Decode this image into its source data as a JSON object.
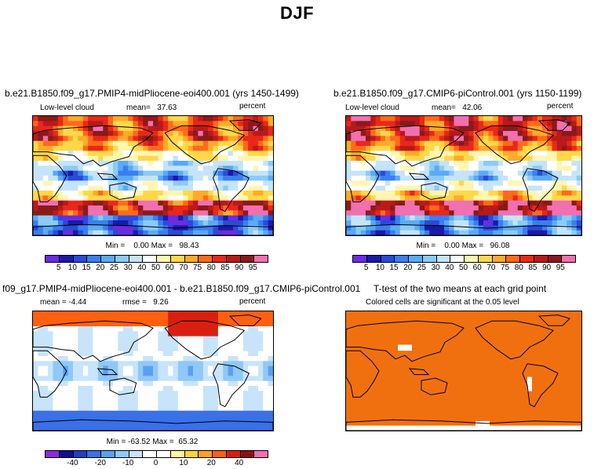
{
  "title": "DJF",
  "colors": {
    "ocean_default": "#ffffff",
    "continent_line": "#000000",
    "significant": "#f07010",
    "not_significant": "#ffffff"
  },
  "chart_data": [
    {
      "type": "heatmap",
      "panel": "top-left",
      "title": "b.e21.B1850.f09_g17.PMIP4-midPliocene-eoi400.001 (yrs 1450-1499)",
      "variable_label": "Low-level cloud",
      "mean_label": "mean=",
      "mean_value": "37.63",
      "units": "percent",
      "min_label": "Min =",
      "min_value": "0.00",
      "max_label": "Max =",
      "max_value": "98.43",
      "colorbar_levels": [
        5,
        10,
        15,
        20,
        25,
        30,
        40,
        50,
        60,
        70,
        75,
        80,
        85,
        90,
        95
      ],
      "colorbar_tick_labels": [
        "5",
        "10",
        "15",
        "20",
        "25",
        "30",
        "40",
        "50",
        "60",
        "70",
        "75",
        "80",
        "85",
        "90",
        "95"
      ]
    },
    {
      "type": "heatmap",
      "panel": "top-right",
      "title": "b.e21.B1850.f09_g17.CMIP6-piControl.001 (yrs 1150-1199)",
      "variable_label": "Low-level cloud",
      "mean_label": "mean=",
      "mean_value": "42.06",
      "units": "percent",
      "min_label": "Min =",
      "min_value": "0.00",
      "max_label": "Max =",
      "max_value": "96.08",
      "colorbar_levels": [
        5,
        10,
        15,
        20,
        25,
        30,
        40,
        50,
        60,
        70,
        75,
        80,
        85,
        90,
        95
      ],
      "colorbar_tick_labels": [
        "5",
        "10",
        "15",
        "20",
        "25",
        "30",
        "40",
        "50",
        "60",
        "70",
        "75",
        "80",
        "85",
        "90",
        "95"
      ]
    },
    {
      "type": "heatmap",
      "panel": "bottom-left",
      "title": "f09_g17.PMIP4-midPliocene-eoi400.001 - b.e21.B1850.f09_g17.CMIP6-piControl.001",
      "mean_label": "mean =",
      "mean_value": "-4.44",
      "rmse_label": "rmse =",
      "rmse_value": "9.26",
      "units": "percent",
      "min_label": "Min =",
      "min_value": "-63.52",
      "max_label": "Max =",
      "max_value": "65.32",
      "colorbar_levels": [
        -50,
        -40,
        -30,
        -20,
        -15,
        -10,
        -5,
        0,
        5,
        10,
        15,
        20,
        30,
        40,
        50
      ],
      "colorbar_tick_labels": [
        "-40",
        "-20",
        "-10",
        "0",
        "10",
        "20",
        "40"
      ]
    },
    {
      "type": "heatmap",
      "panel": "bottom-right",
      "title": "T-test of the two means at each grid point",
      "subtitle": "Colored cells are significant at the 0.05 level"
    }
  ]
}
